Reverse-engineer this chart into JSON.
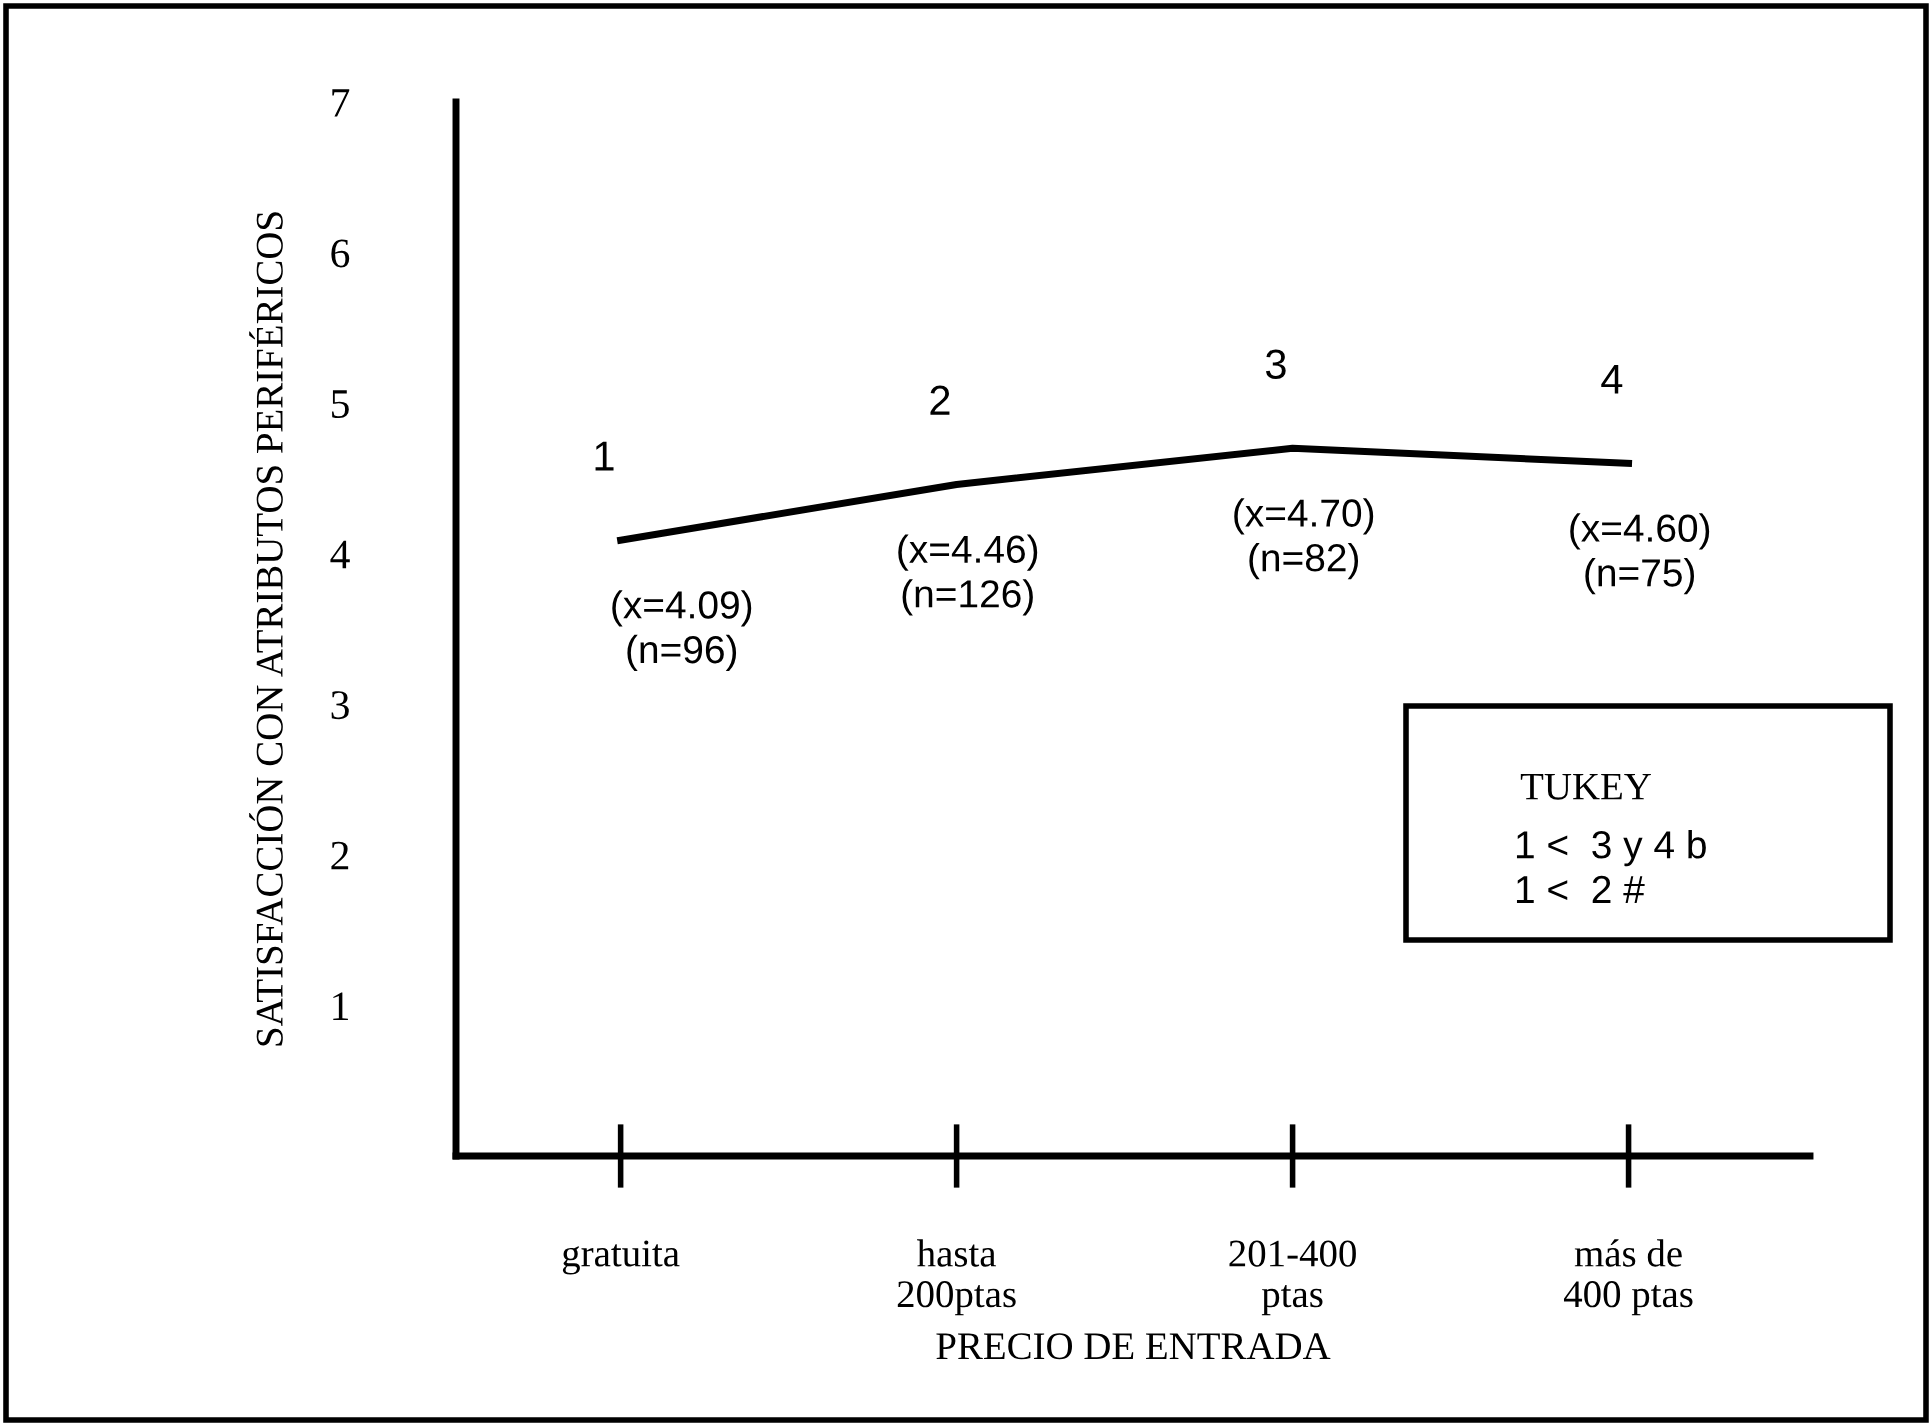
{
  "chart_data": {
    "type": "line",
    "xlabel": "PRECIO DE ENTRADA",
    "ylabel": "SATISFACCIÓN CON ATRIBUTOS PERIFÉRICOS",
    "categories": [
      "gratuita",
      "hasta\n200ptas",
      "201-400\nptas",
      "más de\n400 ptas"
    ],
    "series": [
      {
        "color": "#000000",
        "values": [
          4.09,
          4.46,
          4.7,
          4.6
        ]
      }
    ],
    "ylim": [
      0,
      7
    ],
    "yticks": [
      1,
      2,
      3,
      4,
      5,
      6,
      7
    ],
    "grid": false,
    "legend": false,
    "marker": "none",
    "line_style": "solid",
    "annotations": [
      {
        "text": "1",
        "x": "gratuita",
        "y": 4.09
      },
      {
        "text": "(x=4.09)\n(n=96)",
        "x": "gratuita",
        "y": 4.09
      },
      {
        "text": "2",
        "x": "hasta\n200ptas",
        "y": 4.46
      },
      {
        "text": "(x=4.46)\n(n=126)",
        "x": "hasta\n200ptas",
        "y": 4.46
      },
      {
        "text": "3",
        "x": "201-400\nptas",
        "y": 4.7
      },
      {
        "text": "(x=4.70)\n(n=82)",
        "x": "201-400\nptas",
        "y": 4.7
      },
      {
        "text": "4",
        "x": "más de\n400 ptas",
        "y": 4.6
      },
      {
        "text": "(x=4.60)\n(n=75)",
        "x": "más de\n400 ptas",
        "y": 4.6
      },
      "TUKEY",
      "1 <  3 y 4 b\n1 <  2 #"
    ]
  }
}
